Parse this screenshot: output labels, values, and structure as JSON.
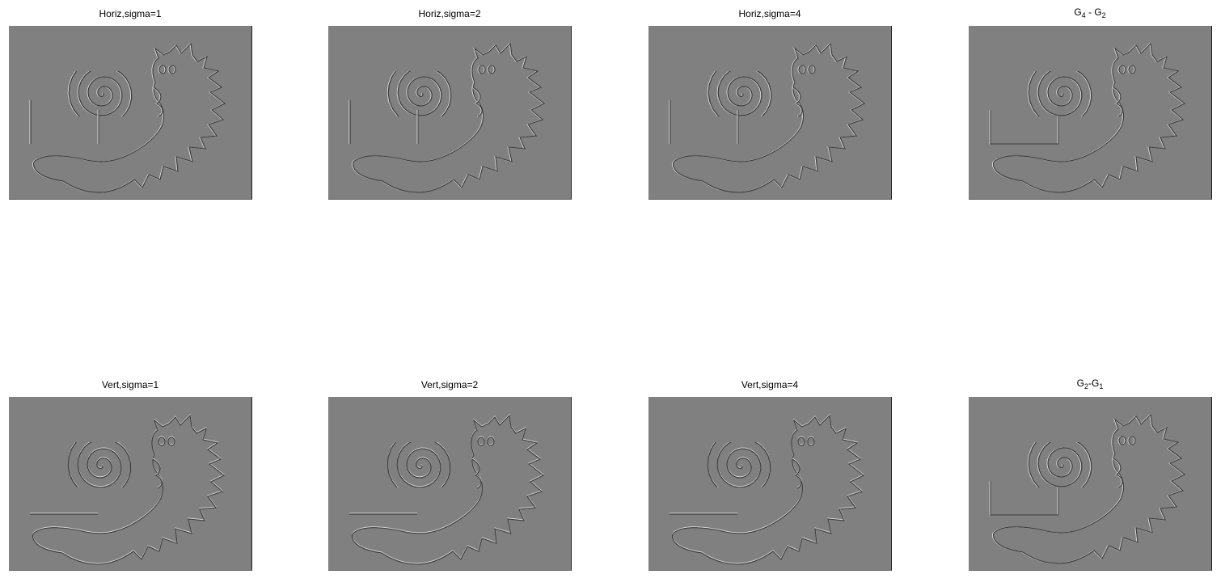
{
  "panels": [
    {
      "id": "horiz-1",
      "title": "Horiz,sigma=1",
      "orientation": "horizontal"
    },
    {
      "id": "horiz-2",
      "title": "Horiz,sigma=2",
      "orientation": "horizontal"
    },
    {
      "id": "horiz-4",
      "title": "Horiz,sigma=4",
      "orientation": "horizontal"
    },
    {
      "id": "dog-4-2",
      "title_main": "G",
      "sub1": "4",
      "mid": " - G",
      "sub2": "2",
      "orientation": "dog"
    },
    {
      "id": "vert-1",
      "title": "Vert,sigma=1",
      "orientation": "vertical"
    },
    {
      "id": "vert-2",
      "title": "Vert,sigma=2",
      "orientation": "vertical"
    },
    {
      "id": "vert-4",
      "title": "Vert,sigma=4",
      "orientation": "vertical"
    },
    {
      "id": "dog-2-1",
      "title_main": "G",
      "sub1": "2",
      "mid": "-G",
      "sub2": "1",
      "orientation": "dog"
    }
  ],
  "colors": {
    "background": "#ffffff",
    "image_gray": "#808080",
    "edge_light": "#d8d8d8",
    "edge_dark": "#3a3a3a"
  }
}
